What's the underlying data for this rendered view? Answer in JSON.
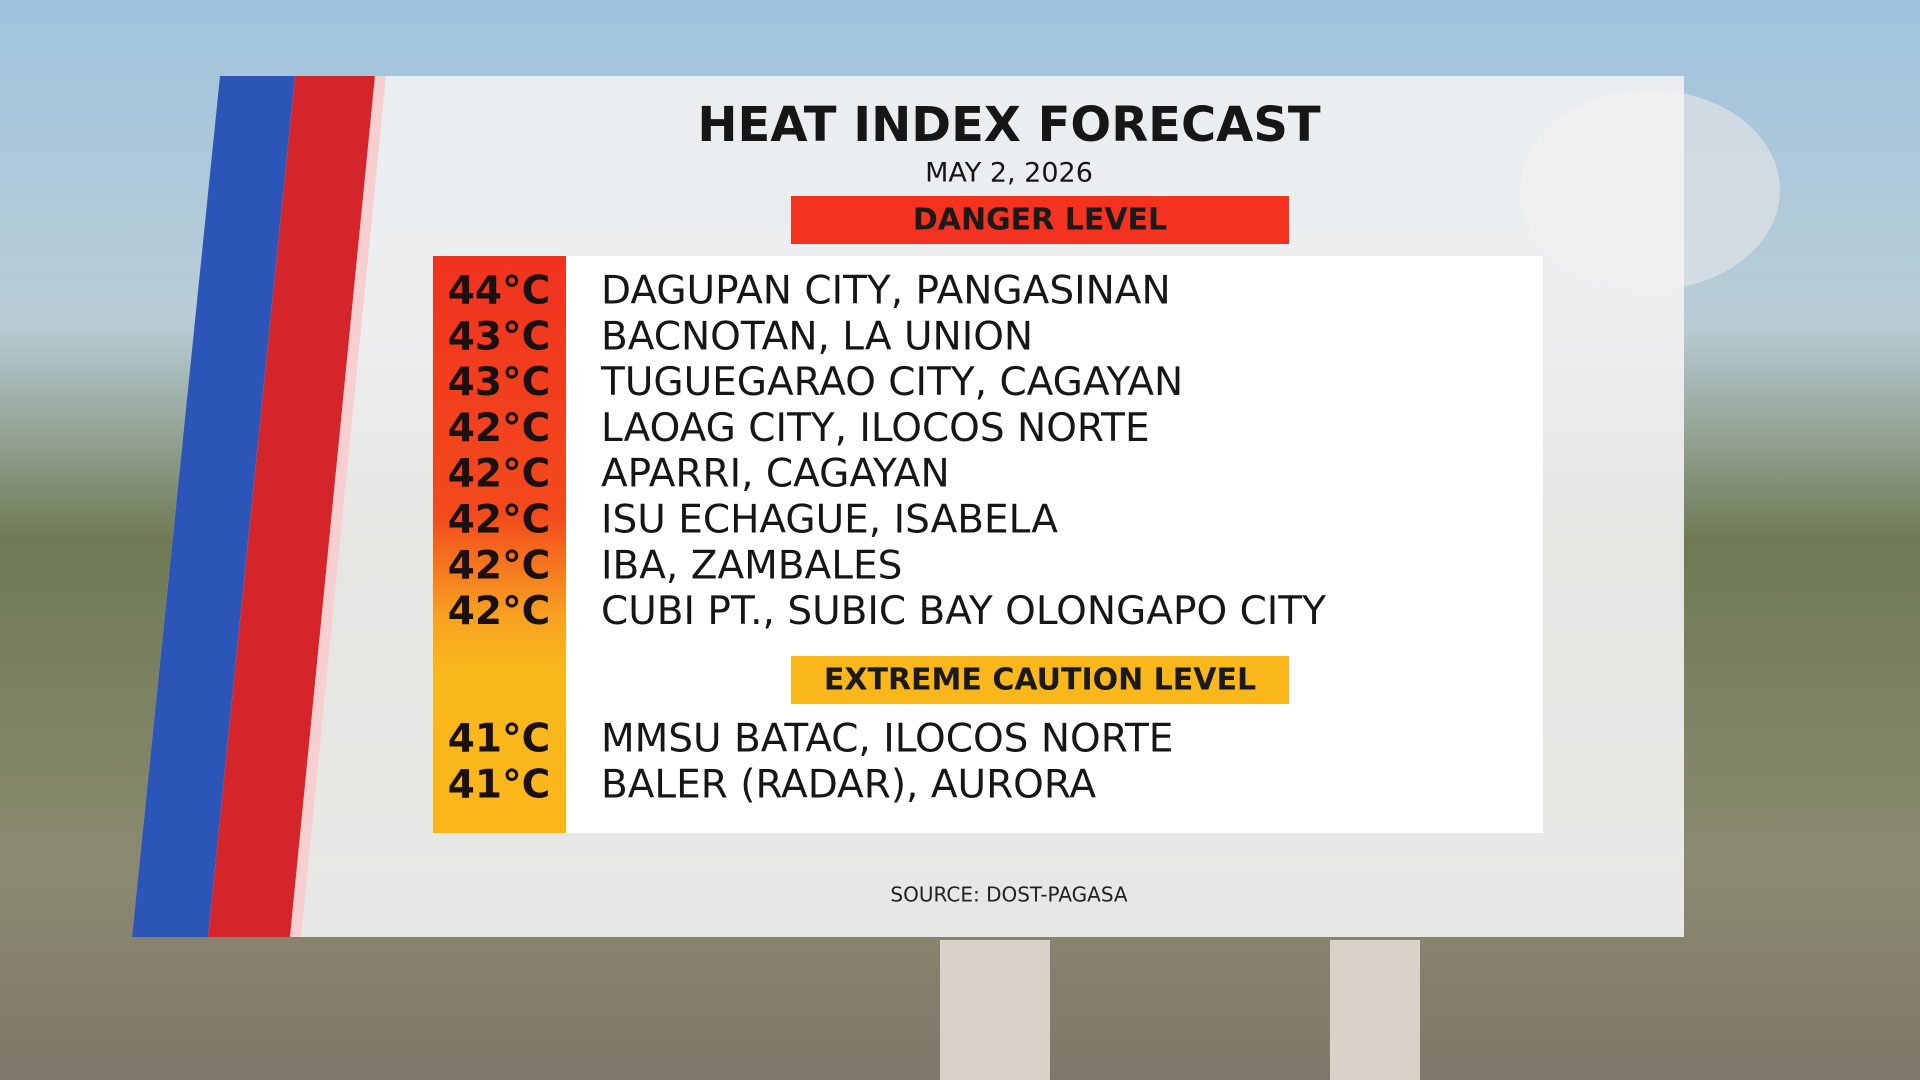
{
  "header": {
    "title": "HEAT INDEX FORECAST",
    "date": "MAY 2, 2026"
  },
  "sections": [
    {
      "label": "DANGER LEVEL",
      "rows": [
        [
          "44°C",
          "DAGUPAN CITY, PANGASINAN"
        ],
        [
          "43°C",
          "BACNOTAN, LA UNION"
        ],
        [
          "43°C",
          "TUGUEGARAO CITY, CAGAYAN"
        ],
        [
          "42°C",
          "LAOAG CITY, ILOCOS NORTE"
        ],
        [
          "42°C",
          "APARRI, CAGAYAN"
        ],
        [
          "42°C",
          "ISU ECHAGUE, ISABELA"
        ],
        [
          "42°C",
          "IBA, ZAMBALES"
        ],
        [
          "42°C",
          "CUBI PT., SUBIC BAY OLONGAPO CITY"
        ]
      ]
    },
    {
      "label": "EXTREME CAUTION LEVEL",
      "rows": [
        [
          "41°C",
          "MMSU BATAC, ILOCOS NORTE"
        ],
        [
          "41°C",
          "BALER (RADAR), AURORA"
        ]
      ]
    }
  ],
  "footer": {
    "source": "SOURCE: DOST-PAGASA"
  }
}
